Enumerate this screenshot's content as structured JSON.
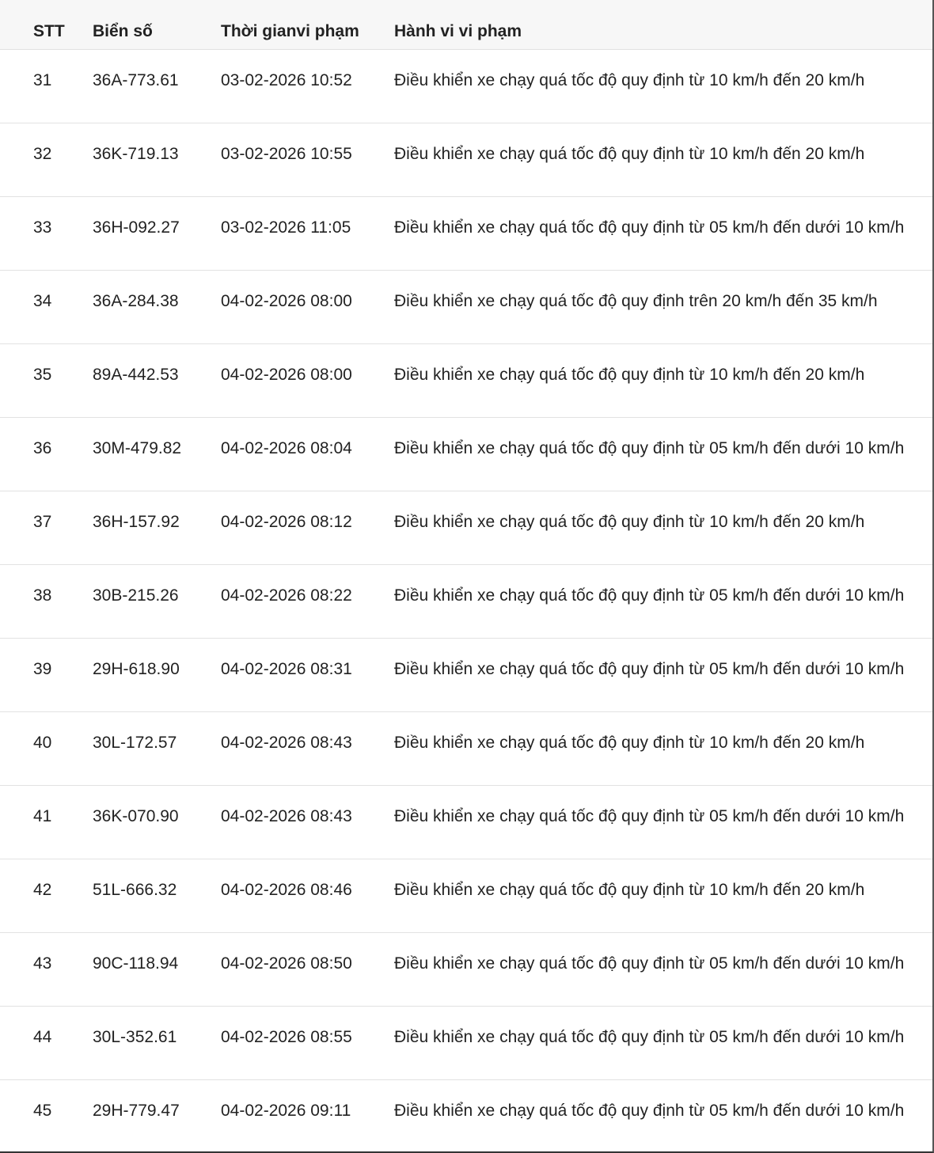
{
  "table": {
    "headers": [
      "STT",
      "Biển số",
      "Thời gianvi phạm",
      "Hành vi vi phạm"
    ],
    "rows": [
      [
        "31",
        "36A-773.61",
        "03-02-2026 10:52",
        "Điều khiển xe chạy quá tốc độ quy định từ 10 km/h đến 20 km/h"
      ],
      [
        "32",
        "36K-719.13",
        "03-02-2026 10:55",
        "Điều khiển xe chạy quá tốc độ quy định từ 10 km/h đến 20 km/h"
      ],
      [
        "33",
        "36H-092.27",
        "03-02-2026 11:05",
        "Điều khiển xe chạy quá tốc độ quy định từ 05 km/h đến dưới 10 km/h"
      ],
      [
        "34",
        "36A-284.38",
        "04-02-2026 08:00",
        "Điều khiển xe chạy quá tốc độ quy định trên 20 km/h đến 35 km/h"
      ],
      [
        "35",
        "89A-442.53",
        "04-02-2026 08:00",
        "Điều khiển xe chạy quá tốc độ quy định từ 10 km/h đến 20 km/h"
      ],
      [
        "36",
        "30M-479.82",
        "04-02-2026 08:04",
        "Điều khiển xe chạy quá tốc độ quy định từ 05 km/h đến dưới 10 km/h"
      ],
      [
        "37",
        "36H-157.92",
        "04-02-2026 08:12",
        "Điều khiển xe chạy quá tốc độ quy định từ 10 km/h đến 20 km/h"
      ],
      [
        "38",
        "30B-215.26",
        "04-02-2026 08:22",
        "Điều khiển xe chạy quá tốc độ quy định từ 05 km/h đến dưới 10 km/h"
      ],
      [
        "39",
        "29H-618.90",
        "04-02-2026 08:31",
        "Điều khiển xe chạy quá tốc độ quy định từ 05 km/h đến dưới 10 km/h"
      ],
      [
        "40",
        "30L-172.57",
        "04-02-2026 08:43",
        "Điều khiển xe chạy quá tốc độ quy định từ 10 km/h đến 20 km/h"
      ],
      [
        "41",
        "36K-070.90",
        "04-02-2026 08:43",
        "Điều khiển xe chạy quá tốc độ quy định từ 05 km/h đến dưới 10 km/h"
      ],
      [
        "42",
        "51L-666.32",
        "04-02-2026 08:46",
        "Điều khiển xe chạy quá tốc độ quy định từ 10 km/h đến 20 km/h"
      ],
      [
        "43",
        "90C-118.94",
        "04-02-2026 08:50",
        "Điều khiển xe chạy quá tốc độ quy định từ 05 km/h đến dưới 10 km/h"
      ],
      [
        "44",
        "30L-352.61",
        "04-02-2026 08:55",
        "Điều khiển xe chạy quá tốc độ quy định từ 05 km/h đến dưới 10 km/h"
      ],
      [
        "45",
        "29H-779.47",
        "04-02-2026 09:11",
        "Điều khiển xe chạy quá tốc độ quy định từ 05 km/h đến dưới 10 km/h"
      ]
    ]
  }
}
